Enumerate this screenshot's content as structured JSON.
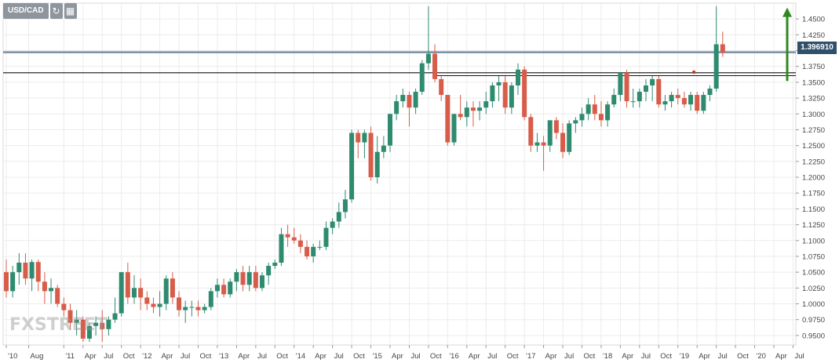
{
  "toolbar": {
    "symbol": "USD/CAD",
    "refresh_icon": "refresh-icon",
    "calendar_icon": "calendar-icon"
  },
  "watermark": "FXSTREET",
  "current_price_label": "1.396910",
  "colors": {
    "bull": "#2e8b6f",
    "bear": "#d85c4a",
    "grid": "#ececec",
    "resistance_blue": "#7a8ea3",
    "arrow": "#2f8a1e"
  },
  "chart_data": {
    "type": "candlestick",
    "title": "",
    "xlabel": "",
    "ylabel": "",
    "ylim": [
      0.935,
      1.475
    ],
    "y_ticks": [
      "1.4500",
      "1.4250",
      "1.4000",
      "1.3750",
      "1.3500",
      "1.3250",
      "1.3000",
      "1.2750",
      "1.2500",
      "1.2250",
      "1.2000",
      "1.1750",
      "1.1500",
      "1.1250",
      "1.1000",
      "1.0750",
      "1.0500",
      "1.0250",
      "1.0000",
      "0.9750",
      "0.9500"
    ],
    "x_tick_labels": [
      "'10",
      "Aug",
      "'11",
      "Apr",
      "Jul",
      "Oct",
      "'12",
      "Apr",
      "Jul",
      "Oct",
      "'13",
      "Apr",
      "Jul",
      "Oct",
      "'14",
      "Apr",
      "Jul",
      "Oct",
      "'15",
      "Apr",
      "Jul",
      "Oct",
      "'16",
      "Apr",
      "Jul",
      "Oct",
      "'17",
      "Apr",
      "Jul",
      "Oct",
      "'18",
      "Apr",
      "Jul",
      "Oct",
      "'19",
      "Apr",
      "Jul",
      "Oct",
      "'20",
      "Apr",
      "Jul"
    ],
    "x_tick_index": [
      0,
      3.5,
      9,
      12,
      15,
      18,
      21,
      24,
      27,
      30,
      33,
      36,
      39,
      42,
      45,
      48,
      51,
      54,
      57,
      60,
      63,
      66,
      69,
      72,
      75,
      78,
      81,
      84,
      87,
      90,
      93,
      96,
      99,
      102,
      105,
      108,
      111,
      114,
      117,
      120,
      123
    ],
    "resistance_lines": [
      {
        "value": 1.3975,
        "color": "blue"
      },
      {
        "value": 1.365,
        "color": "black"
      }
    ],
    "candles": [
      {
        "o": 1.05,
        "h": 1.07,
        "l": 1.01,
        "c": 1.02
      },
      {
        "o": 1.02,
        "h": 1.06,
        "l": 1.01,
        "c": 1.05
      },
      {
        "o": 1.05,
        "h": 1.08,
        "l": 1.03,
        "c": 1.065
      },
      {
        "o": 1.065,
        "h": 1.08,
        "l": 1.03,
        "c": 1.04
      },
      {
        "o": 1.04,
        "h": 1.07,
        "l": 1.02,
        "c": 1.066
      },
      {
        "o": 1.066,
        "h": 1.07,
        "l": 1.02,
        "c": 1.035
      },
      {
        "o": 1.035,
        "h": 1.05,
        "l": 1.0,
        "c": 1.02
      },
      {
        "o": 1.02,
        "h": 1.04,
        "l": 1.0,
        "c": 1.025
      },
      {
        "o": 1.025,
        "h": 1.03,
        "l": 0.995,
        "c": 1.0
      },
      {
        "o": 1.0,
        "h": 1.01,
        "l": 0.98,
        "c": 0.99
      },
      {
        "o": 0.99,
        "h": 1.0,
        "l": 0.96,
        "c": 0.97
      },
      {
        "o": 0.97,
        "h": 0.99,
        "l": 0.95,
        "c": 0.975
      },
      {
        "o": 0.975,
        "h": 0.98,
        "l": 0.94,
        "c": 0.945
      },
      {
        "o": 0.945,
        "h": 0.97,
        "l": 0.94,
        "c": 0.965
      },
      {
        "o": 0.965,
        "h": 0.98,
        "l": 0.95,
        "c": 0.97
      },
      {
        "o": 0.97,
        "h": 0.99,
        "l": 0.94,
        "c": 0.96
      },
      {
        "o": 0.96,
        "h": 0.98,
        "l": 0.95,
        "c": 0.975
      },
      {
        "o": 0.975,
        "h": 1.01,
        "l": 0.97,
        "c": 0.985
      },
      {
        "o": 0.985,
        "h": 1.05,
        "l": 0.98,
        "c": 1.05
      },
      {
        "o": 1.05,
        "h": 1.065,
        "l": 1.0,
        "c": 1.01
      },
      {
        "o": 1.01,
        "h": 1.045,
        "l": 1.0,
        "c": 1.025
      },
      {
        "o": 1.025,
        "h": 1.04,
        "l": 0.99,
        "c": 1.01
      },
      {
        "o": 1.01,
        "h": 1.02,
        "l": 0.99,
        "c": 1.0
      },
      {
        "o": 1.0,
        "h": 1.01,
        "l": 0.985,
        "c": 0.995
      },
      {
        "o": 0.995,
        "h": 1.02,
        "l": 0.98,
        "c": 1.0
      },
      {
        "o": 1.0,
        "h": 1.045,
        "l": 0.99,
        "c": 1.04
      },
      {
        "o": 1.04,
        "h": 1.05,
        "l": 1.0,
        "c": 1.01
      },
      {
        "o": 1.01,
        "h": 1.02,
        "l": 0.98,
        "c": 0.99
      },
      {
        "o": 0.99,
        "h": 1.005,
        "l": 0.97,
        "c": 0.995
      },
      {
        "o": 0.995,
        "h": 1.005,
        "l": 0.98,
        "c": 0.995
      },
      {
        "o": 0.995,
        "h": 1.005,
        "l": 0.98,
        "c": 0.99
      },
      {
        "o": 0.99,
        "h": 1.0,
        "l": 0.985,
        "c": 0.995
      },
      {
        "o": 0.995,
        "h": 1.025,
        "l": 0.99,
        "c": 1.02
      },
      {
        "o": 1.02,
        "h": 1.04,
        "l": 1.01,
        "c": 1.03
      },
      {
        "o": 1.03,
        "h": 1.04,
        "l": 1.01,
        "c": 1.015
      },
      {
        "o": 1.015,
        "h": 1.04,
        "l": 1.01,
        "c": 1.035
      },
      {
        "o": 1.035,
        "h": 1.055,
        "l": 1.02,
        "c": 1.05
      },
      {
        "o": 1.05,
        "h": 1.06,
        "l": 1.02,
        "c": 1.03
      },
      {
        "o": 1.03,
        "h": 1.06,
        "l": 1.02,
        "c": 1.05
      },
      {
        "o": 1.05,
        "h": 1.06,
        "l": 1.02,
        "c": 1.025
      },
      {
        "o": 1.025,
        "h": 1.05,
        "l": 1.02,
        "c": 1.045
      },
      {
        "o": 1.045,
        "h": 1.065,
        "l": 1.03,
        "c": 1.06
      },
      {
        "o": 1.06,
        "h": 1.07,
        "l": 1.055,
        "c": 1.065
      },
      {
        "o": 1.065,
        "h": 1.12,
        "l": 1.06,
        "c": 1.11
      },
      {
        "o": 1.11,
        "h": 1.125,
        "l": 1.09,
        "c": 1.105
      },
      {
        "o": 1.105,
        "h": 1.12,
        "l": 1.095,
        "c": 1.1
      },
      {
        "o": 1.1,
        "h": 1.11,
        "l": 1.08,
        "c": 1.09
      },
      {
        "o": 1.09,
        "h": 1.1,
        "l": 1.07,
        "c": 1.075
      },
      {
        "o": 1.075,
        "h": 1.095,
        "l": 1.065,
        "c": 1.09
      },
      {
        "o": 1.09,
        "h": 1.1,
        "l": 1.085,
        "c": 1.09
      },
      {
        "o": 1.09,
        "h": 1.13,
        "l": 1.085,
        "c": 1.12
      },
      {
        "o": 1.12,
        "h": 1.135,
        "l": 1.11,
        "c": 1.13
      },
      {
        "o": 1.13,
        "h": 1.16,
        "l": 1.12,
        "c": 1.145
      },
      {
        "o": 1.145,
        "h": 1.18,
        "l": 1.135,
        "c": 1.165
      },
      {
        "o": 1.165,
        "h": 1.275,
        "l": 1.16,
        "c": 1.27
      },
      {
        "o": 1.27,
        "h": 1.275,
        "l": 1.23,
        "c": 1.255
      },
      {
        "o": 1.255,
        "h": 1.275,
        "l": 1.23,
        "c": 1.27
      },
      {
        "o": 1.27,
        "h": 1.28,
        "l": 1.195,
        "c": 1.2
      },
      {
        "o": 1.2,
        "h": 1.265,
        "l": 1.19,
        "c": 1.24
      },
      {
        "o": 1.24,
        "h": 1.265,
        "l": 1.23,
        "c": 1.25
      },
      {
        "o": 1.25,
        "h": 1.3,
        "l": 1.24,
        "c": 1.3
      },
      {
        "o": 1.3,
        "h": 1.33,
        "l": 1.29,
        "c": 1.32
      },
      {
        "o": 1.32,
        "h": 1.34,
        "l": 1.31,
        "c": 1.33
      },
      {
        "o": 1.33,
        "h": 1.335,
        "l": 1.28,
        "c": 1.31
      },
      {
        "o": 1.31,
        "h": 1.34,
        "l": 1.3,
        "c": 1.335
      },
      {
        "o": 1.335,
        "h": 1.385,
        "l": 1.33,
        "c": 1.38
      },
      {
        "o": 1.38,
        "h": 1.47,
        "l": 1.37,
        "c": 1.395
      },
      {
        "o": 1.395,
        "h": 1.41,
        "l": 1.35,
        "c": 1.355
      },
      {
        "o": 1.355,
        "h": 1.36,
        "l": 1.32,
        "c": 1.33
      },
      {
        "o": 1.33,
        "h": 1.33,
        "l": 1.25,
        "c": 1.255
      },
      {
        "o": 1.255,
        "h": 1.3,
        "l": 1.25,
        "c": 1.3
      },
      {
        "o": 1.3,
        "h": 1.33,
        "l": 1.29,
        "c": 1.295
      },
      {
        "o": 1.295,
        "h": 1.32,
        "l": 1.28,
        "c": 1.31
      },
      {
        "o": 1.31,
        "h": 1.32,
        "l": 1.28,
        "c": 1.305
      },
      {
        "o": 1.305,
        "h": 1.32,
        "l": 1.29,
        "c": 1.31
      },
      {
        "o": 1.31,
        "h": 1.335,
        "l": 1.3,
        "c": 1.32
      },
      {
        "o": 1.32,
        "h": 1.35,
        "l": 1.31,
        "c": 1.345
      },
      {
        "o": 1.345,
        "h": 1.36,
        "l": 1.32,
        "c": 1.35
      },
      {
        "o": 1.35,
        "h": 1.36,
        "l": 1.3,
        "c": 1.31
      },
      {
        "o": 1.31,
        "h": 1.35,
        "l": 1.3,
        "c": 1.345
      },
      {
        "o": 1.345,
        "h": 1.38,
        "l": 1.33,
        "c": 1.37
      },
      {
        "o": 1.37,
        "h": 1.375,
        "l": 1.29,
        "c": 1.295
      },
      {
        "o": 1.295,
        "h": 1.3,
        "l": 1.24,
        "c": 1.25
      },
      {
        "o": 1.25,
        "h": 1.27,
        "l": 1.24,
        "c": 1.255
      },
      {
        "o": 1.255,
        "h": 1.265,
        "l": 1.21,
        "c": 1.25
      },
      {
        "o": 1.25,
        "h": 1.29,
        "l": 1.24,
        "c": 1.29
      },
      {
        "o": 1.29,
        "h": 1.295,
        "l": 1.26,
        "c": 1.27
      },
      {
        "o": 1.27,
        "h": 1.285,
        "l": 1.23,
        "c": 1.24
      },
      {
        "o": 1.24,
        "h": 1.29,
        "l": 1.235,
        "c": 1.285
      },
      {
        "o": 1.285,
        "h": 1.295,
        "l": 1.27,
        "c": 1.29
      },
      {
        "o": 1.29,
        "h": 1.31,
        "l": 1.28,
        "c": 1.3
      },
      {
        "o": 1.3,
        "h": 1.325,
        "l": 1.29,
        "c": 1.315
      },
      {
        "o": 1.315,
        "h": 1.33,
        "l": 1.29,
        "c": 1.3
      },
      {
        "o": 1.3,
        "h": 1.32,
        "l": 1.28,
        "c": 1.29
      },
      {
        "o": 1.29,
        "h": 1.32,
        "l": 1.28,
        "c": 1.315
      },
      {
        "o": 1.315,
        "h": 1.34,
        "l": 1.31,
        "c": 1.33
      },
      {
        "o": 1.33,
        "h": 1.365,
        "l": 1.32,
        "c": 1.365
      },
      {
        "o": 1.365,
        "h": 1.37,
        "l": 1.31,
        "c": 1.32
      },
      {
        "o": 1.32,
        "h": 1.34,
        "l": 1.31,
        "c": 1.32
      },
      {
        "o": 1.32,
        "h": 1.34,
        "l": 1.31,
        "c": 1.335
      },
      {
        "o": 1.335,
        "h": 1.355,
        "l": 1.32,
        "c": 1.345
      },
      {
        "o": 1.345,
        "h": 1.36,
        "l": 1.32,
        "c": 1.355
      },
      {
        "o": 1.355,
        "h": 1.36,
        "l": 1.31,
        "c": 1.315
      },
      {
        "o": 1.315,
        "h": 1.33,
        "l": 1.305,
        "c": 1.32
      },
      {
        "o": 1.32,
        "h": 1.335,
        "l": 1.31,
        "c": 1.33
      },
      {
        "o": 1.33,
        "h": 1.34,
        "l": 1.315,
        "c": 1.325
      },
      {
        "o": 1.325,
        "h": 1.335,
        "l": 1.31,
        "c": 1.315
      },
      {
        "o": 1.315,
        "h": 1.335,
        "l": 1.305,
        "c": 1.33
      },
      {
        "o": 1.33,
        "h": 1.335,
        "l": 1.3,
        "c": 1.305
      },
      {
        "o": 1.305,
        "h": 1.335,
        "l": 1.3,
        "c": 1.33
      },
      {
        "o": 1.33,
        "h": 1.345,
        "l": 1.32,
        "c": 1.34
      },
      {
        "o": 1.34,
        "h": 1.47,
        "l": 1.335,
        "c": 1.41
      },
      {
        "o": 1.41,
        "h": 1.43,
        "l": 1.39,
        "c": 1.397
      }
    ]
  }
}
